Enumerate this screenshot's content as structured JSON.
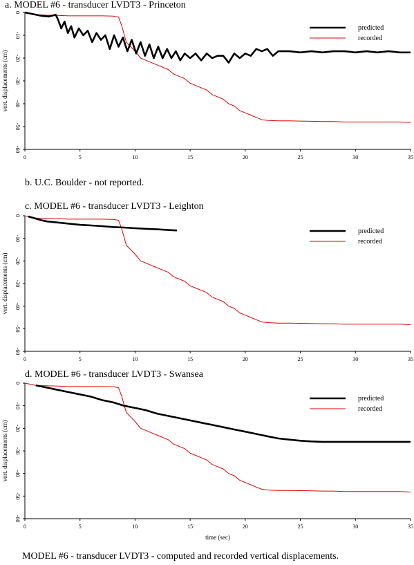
{
  "note": "b. U.C. Boulder - not reported.",
  "caption": "MODEL #6 - transducer LVDT3 - computed and recorded vertical displacements.",
  "colors": {
    "predicted": "#000000",
    "recorded": "#e00000"
  },
  "chart_data": [
    {
      "type": "line",
      "title": "a. MODEL #6 - transducer LVDT3 - Princeton",
      "ylabel": "vert. displacements (cm)",
      "xlabel": "",
      "xlim": [
        0,
        35
      ],
      "ylim": [
        -60,
        0
      ],
      "xticks": [
        "0",
        "5",
        "10",
        "15",
        "20",
        "25",
        "30",
        "35"
      ],
      "yticks": [
        "0",
        "-10",
        "-20",
        "-30",
        "-40",
        "-50",
        "-60"
      ],
      "legend": "top-right",
      "series": [
        {
          "name": "predicted",
          "x": [
            0,
            1.5,
            2.2,
            2.8,
            3,
            3.3,
            3.6,
            3.9,
            4.2,
            4.5,
            4.9,
            5.3,
            5.7,
            6.1,
            6.5,
            6.9,
            7.3,
            7.7,
            8.1,
            8.5,
            8.9,
            9.3,
            9.7,
            10.1,
            10.5,
            10.9,
            11.3,
            11.7,
            12.1,
            12.5,
            12.9,
            13.3,
            13.7,
            14.1,
            14.5,
            15,
            15.5,
            16,
            16.5,
            17,
            17.5,
            18,
            18.5,
            19,
            19.5,
            20,
            20.5,
            21,
            21.5,
            22,
            22.5,
            23,
            24,
            25,
            26,
            27,
            28,
            29,
            30,
            31,
            32,
            33,
            34,
            35
          ],
          "y": [
            null,
            -1.5,
            -1.8,
            -1.0,
            -3,
            -7,
            -4,
            -9,
            -6,
            -11,
            -7,
            -10,
            -8,
            -13,
            -9,
            -12,
            -10,
            -16,
            -10,
            -15,
            -11,
            -17,
            -12,
            -18,
            -13,
            -19,
            -14,
            -20,
            -15,
            -20,
            -16,
            -20,
            -17,
            -21,
            -18,
            -20,
            -18,
            -21,
            -18,
            -20,
            -19,
            -19,
            -22,
            -18,
            -20,
            -18,
            -19,
            -16,
            -17,
            -16,
            -19,
            -17,
            -17,
            -17.5,
            -17,
            -17.5,
            -17,
            -17,
            -17.5,
            -17,
            -17.5,
            -17,
            -17.5,
            -17.5
          ]
        },
        {
          "name": "recorded",
          "x": [
            0,
            1,
            2,
            3,
            4,
            5,
            6,
            7,
            8,
            8.5,
            8.8,
            9.2,
            9.6,
            10,
            10.5,
            11,
            11.5,
            12,
            12.5,
            13,
            13.5,
            14,
            14.5,
            15,
            15.5,
            16,
            16.5,
            17,
            17.5,
            18,
            18.5,
            19,
            19.5,
            20,
            20.5,
            21,
            21.5,
            22,
            23,
            24,
            25,
            26,
            27,
            28,
            29,
            30,
            31,
            32,
            33,
            34,
            35
          ],
          "y": [
            null,
            -1,
            -1.2,
            -1.3,
            -1.5,
            -1.5,
            -1.5,
            -1.5,
            -1.6,
            -2,
            -6,
            -13,
            -15,
            -17,
            -20,
            -21,
            -22,
            -23,
            -24,
            -25,
            -27,
            -28,
            -29,
            -31,
            -32,
            -33,
            -34,
            -36,
            -37,
            -38,
            -40,
            -41,
            -43,
            -44,
            -45,
            -46,
            -47,
            -47.3,
            -47.5,
            -47.5,
            -47.6,
            -47.7,
            -47.8,
            -47.8,
            -48,
            -48,
            -48,
            -48,
            -48,
            -48,
            -48.2
          ]
        }
      ]
    },
    {
      "type": "line",
      "title": "c. MODEL #6 - transducer LVDT3 - Leighton",
      "ylabel": "vert. displacements (cm)",
      "xlabel": "",
      "xlim": [
        0,
        35
      ],
      "ylim": [
        -60,
        0
      ],
      "xticks": [
        "0",
        "5",
        "10",
        "15",
        "20",
        "25",
        "30",
        "35"
      ],
      "yticks": [
        "0",
        "-10",
        "-20",
        "-30",
        "-40",
        "-50",
        "-60"
      ],
      "legend": "top-right",
      "series": [
        {
          "name": "predicted",
          "x": [
            0.3,
            0.8,
            1.5,
            2,
            3,
            4,
            5,
            6,
            7,
            8,
            9,
            10,
            11,
            12,
            13,
            13.8
          ],
          "y": [
            -0.3,
            -1,
            -2,
            -2.5,
            -3,
            -3.5,
            -4,
            -4.3,
            -4.6,
            -5,
            -5.2,
            -5.5,
            -5.8,
            -6,
            -6.3,
            -6.5
          ]
        },
        {
          "name": "recorded",
          "x": [
            0,
            1,
            2,
            3,
            4,
            5,
            6,
            7,
            8,
            8.5,
            8.8,
            9.2,
            9.6,
            10,
            10.5,
            11,
            11.5,
            12,
            12.5,
            13,
            13.5,
            14,
            14.5,
            15,
            15.5,
            16,
            16.5,
            17,
            17.5,
            18,
            18.5,
            19,
            19.5,
            20,
            20.5,
            21,
            21.5,
            22,
            23,
            24,
            25,
            26,
            27,
            28,
            29,
            30,
            31,
            32,
            33,
            34,
            35
          ],
          "y": [
            null,
            -1,
            -1.2,
            -1.3,
            -1.5,
            -1.5,
            -1.5,
            -1.5,
            -1.6,
            -2,
            -6,
            -13,
            -15,
            -17,
            -20,
            -21,
            -22,
            -23,
            -24,
            -25,
            -27,
            -28,
            -29,
            -31,
            -32,
            -33,
            -34,
            -36,
            -37,
            -38,
            -40,
            -41,
            -43,
            -44,
            -45,
            -46,
            -47,
            -47.3,
            -47.5,
            -47.5,
            -47.6,
            -47.7,
            -47.8,
            -47.8,
            -48,
            -48,
            -48,
            -48,
            -48,
            -48,
            -48.2
          ]
        }
      ]
    },
    {
      "type": "line",
      "title": "d. MODEL #6 - transducer LVDT3 - Swansea",
      "ylabel": "vert. displacements (cm)",
      "xlabel": "time (sec)",
      "xlim": [
        0,
        35
      ],
      "ylim": [
        -60,
        0
      ],
      "xticks": [
        "0",
        "5",
        "10",
        "15",
        "20",
        "25",
        "30",
        "35"
      ],
      "yticks": [
        "0",
        "-10",
        "-20",
        "-30",
        "-40",
        "-50",
        "-60"
      ],
      "legend": "top-right",
      "series": [
        {
          "name": "predicted",
          "x": [
            1,
            1.5,
            2,
            3,
            4,
            5,
            6,
            7,
            8,
            9,
            10,
            11,
            12,
            13,
            14,
            15,
            16,
            17,
            18,
            19,
            20,
            21,
            22,
            23,
            24,
            25,
            26,
            27,
            28,
            29,
            30,
            31,
            32,
            33,
            34,
            35
          ],
          "y": [
            -1,
            -1.5,
            -2,
            -3,
            -4,
            -5,
            -6,
            -7.5,
            -8.5,
            -10,
            -11,
            -12,
            -13.5,
            -14.5,
            -15.5,
            -16.5,
            -17.5,
            -18.5,
            -19.5,
            -20.5,
            -21.5,
            -22.5,
            -23.5,
            -24.5,
            -25,
            -25.5,
            -25.8,
            -26,
            -26,
            -26,
            -26,
            -26,
            -26,
            -26,
            -26,
            -26
          ]
        },
        {
          "name": "recorded",
          "x": [
            0,
            1,
            2,
            3,
            4,
            5,
            6,
            7,
            8,
            8.5,
            8.8,
            9.2,
            9.6,
            10,
            10.5,
            11,
            11.5,
            12,
            12.5,
            13,
            13.5,
            14,
            14.5,
            15,
            15.5,
            16,
            16.5,
            17,
            17.5,
            18,
            18.5,
            19,
            19.5,
            20,
            20.5,
            21,
            21.5,
            22,
            23,
            24,
            25,
            26,
            27,
            28,
            29,
            30,
            31,
            32,
            33,
            34,
            35
          ],
          "y": [
            null,
            -1,
            -1.2,
            -1.3,
            -1.5,
            -1.5,
            -1.5,
            -1.5,
            -1.6,
            -2,
            -6,
            -13,
            -15,
            -17,
            -20,
            -21,
            -22,
            -23,
            -24,
            -25,
            -27,
            -28,
            -29,
            -31,
            -32,
            -33,
            -34,
            -36,
            -37,
            -38,
            -40,
            -41,
            -43,
            -44,
            -45,
            -46,
            -47,
            -47.3,
            -47.5,
            -47.5,
            -47.6,
            -47.7,
            -47.8,
            -47.8,
            -48,
            -48,
            -48,
            -48,
            -48,
            -48,
            -48.2
          ]
        }
      ]
    }
  ]
}
